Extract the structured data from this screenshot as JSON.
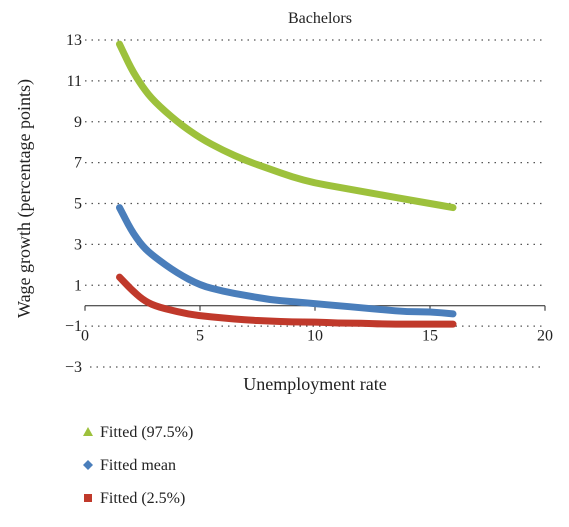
{
  "chart_data": {
    "type": "line",
    "title": "Bachelors",
    "xlabel": "Unemployment rate",
    "ylabel": "Wage growth (percentage points)",
    "xlim": [
      0,
      20
    ],
    "ylim": [
      -3,
      13
    ],
    "x_ticks": [
      0,
      5,
      10,
      15,
      20
    ],
    "y_ticks": [
      -3,
      -1,
      1,
      3,
      5,
      7,
      9,
      11,
      13
    ],
    "grid": "horizontal dotted",
    "legend_position": "bottom-left",
    "series": [
      {
        "name": "Fitted (97.5%)",
        "marker": "triangle",
        "color": "#9dc13c",
        "x": [
          1.5,
          2,
          2.5,
          3,
          4,
          5,
          6,
          7,
          8,
          9,
          10,
          11,
          12,
          13,
          14,
          15,
          16
        ],
        "y": [
          12.8,
          11.6,
          10.7,
          10.0,
          9.0,
          8.2,
          7.6,
          7.1,
          6.7,
          6.3,
          6.0,
          5.8,
          5.6,
          5.4,
          5.2,
          5.0,
          4.8
        ]
      },
      {
        "name": "Fitted mean",
        "marker": "diamond",
        "color": "#4a7ebb",
        "x": [
          1.5,
          2,
          2.5,
          3,
          4,
          5,
          6,
          7,
          8,
          9,
          10,
          11,
          12,
          13,
          14,
          15,
          16
        ],
        "y": [
          4.8,
          3.7,
          2.9,
          2.4,
          1.6,
          1.0,
          0.7,
          0.5,
          0.3,
          0.2,
          0.1,
          0.0,
          -0.1,
          -0.2,
          -0.3,
          -0.3,
          -0.4
        ]
      },
      {
        "name": "Fitted (2.5%)",
        "marker": "square",
        "color": "#c0392b",
        "x": [
          1.5,
          2,
          2.5,
          3,
          4,
          5,
          6,
          7,
          8,
          9,
          10,
          11,
          12,
          13,
          14,
          15,
          16
        ],
        "y": [
          1.4,
          0.8,
          0.3,
          0.0,
          -0.3,
          -0.5,
          -0.6,
          -0.7,
          -0.75,
          -0.8,
          -0.8,
          -0.85,
          -0.85,
          -0.9,
          -0.9,
          -0.9,
          -0.9
        ]
      }
    ]
  }
}
